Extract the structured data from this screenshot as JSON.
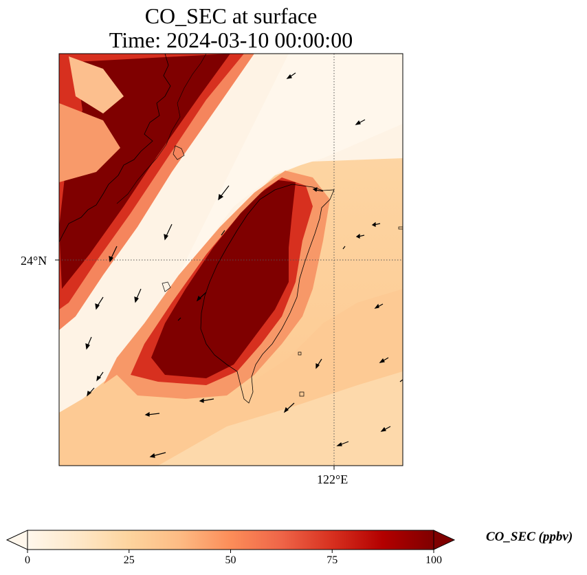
{
  "title": {
    "line1": "CO_SEC at surface",
    "line2": "Time: 2024-03-10 00:00:00"
  },
  "axes": {
    "lat_tick": "24°N",
    "lon_tick": "122°E"
  },
  "colorbar": {
    "label": "CO_SEC (ppbv)",
    "ticks": [
      "0",
      "25",
      "50",
      "75",
      "100"
    ],
    "min": 0,
    "max": 100,
    "extend": "both",
    "colormap": "OrRd",
    "colors": [
      "#fff7ec",
      "#fee8c8",
      "#fdd49e",
      "#fdbb84",
      "#fc8d59",
      "#ef6548",
      "#d7301f",
      "#b30000",
      "#7f0000"
    ]
  },
  "map": {
    "gridlines": "dotted",
    "coastlines": true,
    "wind_vectors": true,
    "background_color": "#fdd8a4"
  }
}
